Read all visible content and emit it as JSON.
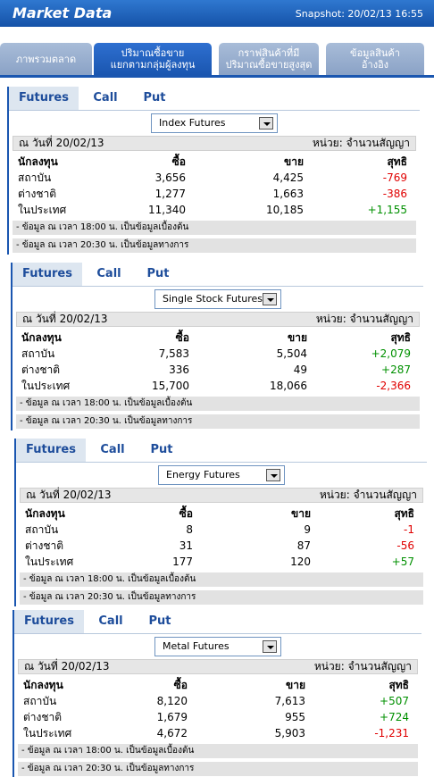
{
  "header": {
    "title": "Market Data",
    "snapshot": "Snapshot: 20/02/13 16:55"
  },
  "tabs": [
    {
      "lines": [
        "ภาพรวมตลาด"
      ]
    },
    {
      "lines": [
        "ปริมาณซื้อขาย",
        "แยกตามกลุ่มผู้ลงทุน"
      ]
    },
    {
      "lines": [
        "กราฟสินค้าที่มี",
        "ปริมาณซื้อขายสูงสุด"
      ]
    },
    {
      "lines": [
        "ข้อมูลสินค้า",
        "อ้างอิง"
      ]
    }
  ],
  "panels": [
    {
      "subtabs": [
        "Futures",
        "Call",
        "Put"
      ],
      "product": "Index Futures",
      "date": "ณ วันที่ 20/02/13",
      "unit": "หน่วย: จำนวนสัญญา",
      "columns": [
        "นักลงทุน",
        "ซื้อ",
        "ขาย",
        "สุทธิ"
      ],
      "rows": [
        [
          "สถาบัน",
          "3,656",
          "4,425",
          "-769"
        ],
        [
          "ต่างชาติ",
          "1,277",
          "1,663",
          "-386"
        ],
        [
          "ในประเทศ",
          "11,340",
          "10,185",
          "+1,155"
        ]
      ],
      "notes": [
        "- ข้อมูล ณ เวลา 18:00 น. เป็นข้อมูลเบื้องต้น",
        "- ข้อมูล ณ เวลา 20:30 น. เป็นข้อมูลทางการ"
      ]
    },
    {
      "subtabs": [
        "Futures",
        "Call",
        "Put"
      ],
      "product": "Single Stock Futures",
      "date": "ณ วันที่ 20/02/13",
      "unit": "หน่วย: จำนวนสัญญา",
      "columns": [
        "นักลงทุน",
        "ซื้อ",
        "ขาย",
        "สุทธิ"
      ],
      "rows": [
        [
          "สถาบัน",
          "7,583",
          "5,504",
          "+2,079"
        ],
        [
          "ต่างชาติ",
          "336",
          "49",
          "+287"
        ],
        [
          "ในประเทศ",
          "15,700",
          "18,066",
          "-2,366"
        ]
      ],
      "notes": [
        "- ข้อมูล ณ เวลา 18:00 น. เป็นข้อมูลเบื้องต้น",
        "- ข้อมูล ณ เวลา 20:30 น. เป็นข้อมูลทางการ"
      ]
    },
    {
      "subtabs": [
        "Futures",
        "Call",
        "Put"
      ],
      "product": "Energy Futures",
      "date": "ณ วันที่ 20/02/13",
      "unit": "หน่วย: จำนวนสัญญา",
      "columns": [
        "นักลงทุน",
        "ซื้อ",
        "ขาย",
        "สุทธิ"
      ],
      "rows": [
        [
          "สถาบัน",
          "8",
          "9",
          "-1"
        ],
        [
          "ต่างชาติ",
          "31",
          "87",
          "-56"
        ],
        [
          "ในประเทศ",
          "177",
          "120",
          "+57"
        ]
      ],
      "notes": [
        "- ข้อมูล ณ เวลา 18:00 น. เป็นข้อมูลเบื้องต้น",
        "- ข้อมูล ณ เวลา 20:30 น. เป็นข้อมูลทางการ"
      ]
    },
    {
      "subtabs": [
        "Futures",
        "Call",
        "Put"
      ],
      "product": "Metal Futures",
      "date": "ณ วันที่ 20/02/13",
      "unit": "หน่วย: จำนวนสัญญา",
      "columns": [
        "นักลงทุน",
        "ซื้อ",
        "ขาย",
        "สุทธิ"
      ],
      "rows": [
        [
          "สถาบัน",
          "8,120",
          "7,613",
          "+507"
        ],
        [
          "ต่างชาติ",
          "1,679",
          "955",
          "+724"
        ],
        [
          "ในประเทศ",
          "4,672",
          "5,903",
          "-1,231"
        ]
      ],
      "notes": [
        "- ข้อมูล ณ เวลา 18:00 น. เป็นข้อมูลเบื้องต้น",
        "- ข้อมูล ณ เวลา 20:30 น. เป็นข้อมูลทางการ"
      ]
    }
  ]
}
